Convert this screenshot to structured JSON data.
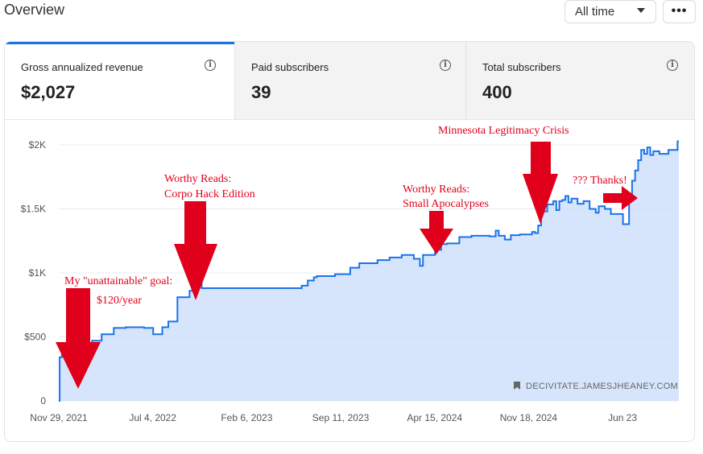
{
  "header": {
    "title": "Overview",
    "range_value": "All time",
    "more_label": "•••"
  },
  "stats": {
    "gross": {
      "label": "Gross annualized revenue",
      "value": "$2,027"
    },
    "paid": {
      "label": "Paid subscribers",
      "value": "39"
    },
    "total": {
      "label": "Total subscribers",
      "value": "400"
    }
  },
  "watermark": "DECIVITATE.JAMESJHEANEY.COM",
  "colors": {
    "line": "#1a73e8",
    "fill": "#cfe0fc",
    "annotation": "#e0001b",
    "active_tab": "#1a73e8"
  },
  "annotations": [
    {
      "lines": [
        "Worthy Reads:",
        "Corpo Hack Edition"
      ]
    },
    {
      "lines": [
        "Worthy Reads:",
        "Small Apocalypses"
      ]
    },
    {
      "lines": [
        "Minnesota Legitimacy Crisis"
      ]
    },
    {
      "lines": [
        "??? Thanks!"
      ]
    },
    {
      "lines": [
        "My \"unattainable\" goal:"
      ]
    },
    {
      "lines": [
        "$120/year"
      ]
    }
  ],
  "chart_data": {
    "type": "area",
    "title": "",
    "xlabel": "",
    "ylabel": "",
    "ylim": [
      0,
      2050
    ],
    "yticks": [
      0,
      500,
      1000,
      1500,
      2000
    ],
    "ytick_labels": [
      "0",
      "$500",
      "$1K",
      "$1.5K",
      "$2K"
    ],
    "x_tick_labels": [
      "Nov 29, 2021",
      "Jul 4, 2022",
      "Feb 6, 2023",
      "Sep 11, 2023",
      "Apr 15, 2024",
      "Nov 18, 2024",
      "Jun 23"
    ],
    "x_ticks": [
      "2021-11-29",
      "2022-07-04",
      "2023-02-06",
      "2023-09-11",
      "2024-04-15",
      "2024-11-18",
      "2025-06-23"
    ],
    "xlim": [
      "2021-11-29",
      "2025-10-31"
    ],
    "grid": true,
    "series": [
      {
        "step": true,
        "x": [
          "2021-11-29",
          "2021-12-01",
          "2021-12-06",
          "2021-12-15",
          "2022-01-20",
          "2022-01-31",
          "2022-02-14",
          "2022-03-08",
          "2022-04-05",
          "2022-05-03",
          "2022-06-14",
          "2022-07-05",
          "2022-07-26",
          "2022-08-09",
          "2022-08-30",
          "2022-09-27",
          "2022-10-11",
          "2022-10-25",
          "2022-11-08",
          "2022-12-20",
          "2023-01-10",
          "2023-01-31",
          "2023-02-21",
          "2023-05-02",
          "2023-06-13",
          "2023-06-27",
          "2023-07-11",
          "2023-07-18",
          "2023-08-15",
          "2023-08-29",
          "2023-09-12",
          "2023-10-03",
          "2023-10-24",
          "2023-12-05",
          "2024-01-02",
          "2024-01-30",
          "2024-02-27",
          "2024-03-12",
          "2024-03-19",
          "2024-04-16",
          "2024-04-30",
          "2024-05-14",
          "2024-06-11",
          "2024-07-09",
          "2024-08-20",
          "2024-09-03",
          "2024-09-10",
          "2024-09-24",
          "2024-10-08",
          "2024-10-29",
          "2024-11-26",
          "2024-12-03",
          "2024-12-10",
          "2024-12-17",
          "2024-12-31",
          "2025-01-14",
          "2025-01-21",
          "2025-01-28",
          "2025-02-04",
          "2025-02-11",
          "2025-02-18",
          "2025-02-25",
          "2025-03-11",
          "2025-03-25",
          "2025-04-08",
          "2025-04-22",
          "2025-04-29",
          "2025-05-13",
          "2025-05-27",
          "2025-06-24",
          "2025-07-08",
          "2025-07-15",
          "2025-07-22",
          "2025-07-29",
          "2025-08-05",
          "2025-08-12",
          "2025-08-19",
          "2025-08-26",
          "2025-09-02",
          "2025-09-16",
          "2025-10-07",
          "2025-10-28"
        ],
        "values": [
          0,
          340,
          360,
          355,
          360,
          345,
          470,
          520,
          570,
          575,
          570,
          520,
          575,
          620,
          810,
          860,
          925,
          880,
          880,
          880,
          880,
          880,
          880,
          880,
          900,
          940,
          965,
          975,
          975,
          990,
          990,
          1040,
          1075,
          1100,
          1120,
          1140,
          1110,
          1055,
          1140,
          1180,
          1225,
          1230,
          1280,
          1290,
          1285,
          1330,
          1290,
          1260,
          1295,
          1300,
          1320,
          1310,
          1370,
          1480,
          1535,
          1560,
          1490,
          1560,
          1570,
          1600,
          1550,
          1580,
          1540,
          1560,
          1500,
          1470,
          1520,
          1500,
          1460,
          1380,
          1600,
          1720,
          1800,
          1880,
          1960,
          1930,
          1980,
          1920,
          1950,
          1930,
          1960,
          2027
        ]
      }
    ]
  }
}
